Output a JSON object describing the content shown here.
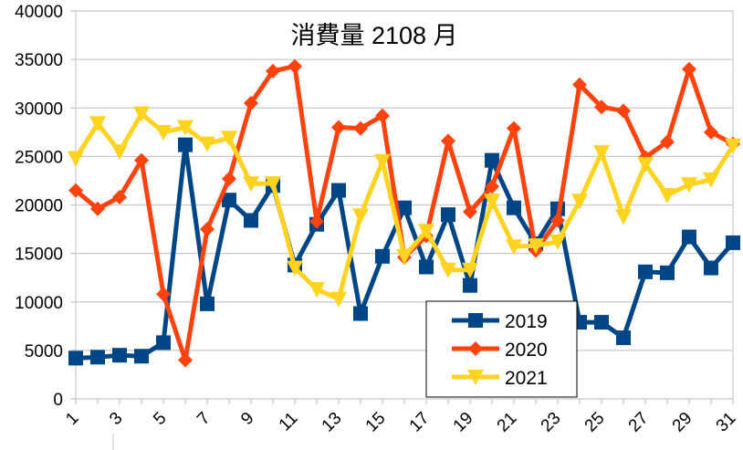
{
  "chart_data": {
    "type": "line",
    "title": "消費量 2108 月",
    "xlabel": "",
    "ylabel": "",
    "x": [
      1,
      2,
      3,
      4,
      5,
      6,
      7,
      8,
      9,
      10,
      11,
      12,
      13,
      14,
      15,
      16,
      17,
      18,
      19,
      20,
      21,
      22,
      23,
      24,
      25,
      26,
      27,
      28,
      29,
      30,
      31
    ],
    "x_tick_labels": [
      "1",
      "3",
      "5",
      "7",
      "9",
      "11",
      "13",
      "15",
      "17",
      "19",
      "21",
      "23",
      "25",
      "27",
      "29",
      "31"
    ],
    "ylim": [
      0,
      40000
    ],
    "y_ticks": [
      0,
      5000,
      10000,
      15000,
      20000,
      25000,
      30000,
      35000,
      40000
    ],
    "grid": "horizontal",
    "legend": "bottom-center",
    "series": [
      {
        "name": "2019",
        "color": "#004586",
        "marker": "square",
        "values": [
          4200,
          4300,
          4500,
          4400,
          5800,
          26200,
          9800,
          20500,
          18400,
          22000,
          13800,
          18000,
          21500,
          8800,
          14700,
          19700,
          13600,
          19000,
          11700,
          24600,
          19700,
          16000,
          19600,
          7900,
          7900,
          6300,
          13100,
          13000,
          16700,
          13500,
          16100
        ]
      },
      {
        "name": "2020",
        "color": "#ff420e",
        "marker": "diamond",
        "values": [
          21500,
          19600,
          20800,
          24600,
          10800,
          4000,
          17500,
          22700,
          30500,
          33800,
          34300,
          18300,
          28000,
          27900,
          29200,
          14600,
          16800,
          26600,
          19300,
          21900,
          27900,
          15300,
          18400,
          32400,
          30100,
          29700,
          24900,
          26500,
          34000,
          27500,
          26300
        ]
      },
      {
        "name": "2021",
        "color": "#ffd320",
        "marker": "triangle-down",
        "values": [
          24800,
          28400,
          25500,
          29400,
          27500,
          28000,
          26300,
          26900,
          22200,
          22200,
          13500,
          11300,
          10300,
          18900,
          24500,
          14700,
          17300,
          13300,
          13300,
          20400,
          15700,
          15800,
          16200,
          20400,
          25400,
          18800,
          24200,
          21000,
          22100,
          22600,
          26100
        ]
      }
    ]
  }
}
